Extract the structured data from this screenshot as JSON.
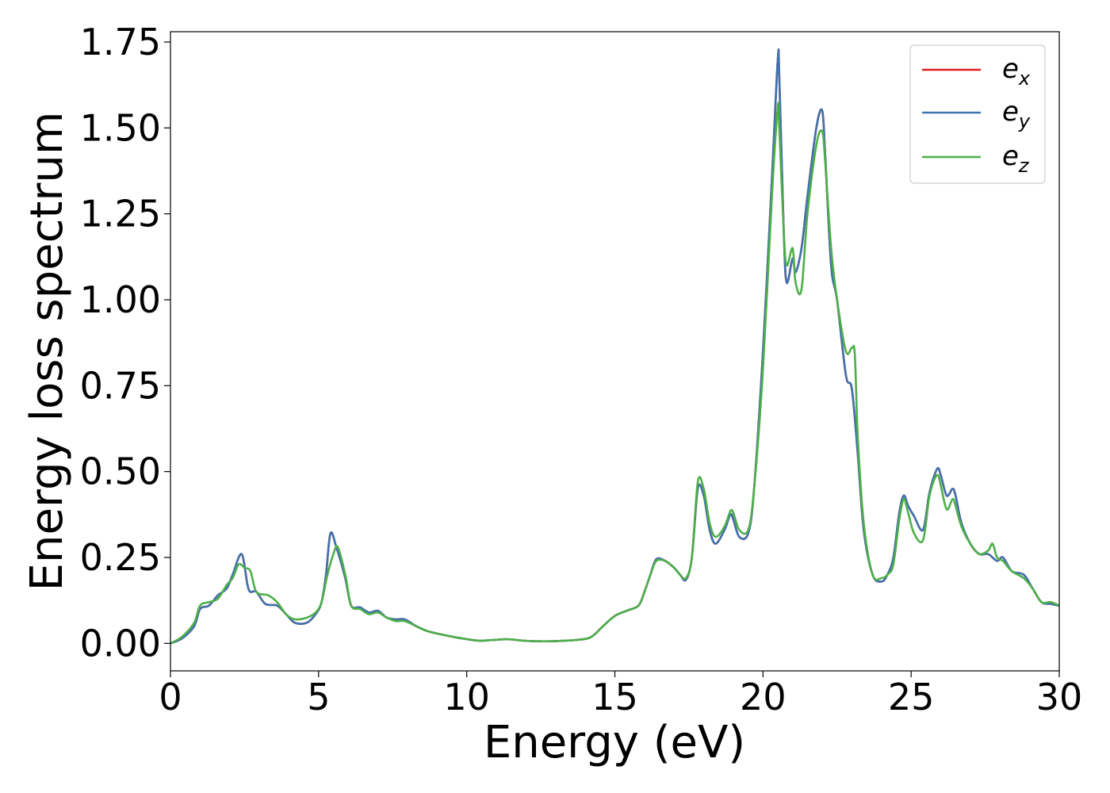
{
  "chart_data": {
    "type": "line",
    "title": "",
    "xlabel": "Energy (eV)",
    "ylabel": "Energy loss spectrum",
    "xlim": [
      0,
      30
    ],
    "ylim": [
      -0.08,
      1.78
    ],
    "xticks": [
      0,
      5,
      10,
      15,
      20,
      25,
      30
    ],
    "xtick_labels": [
      "0",
      "5",
      "10",
      "15",
      "20",
      "25",
      "30"
    ],
    "yticks": [
      0.0,
      0.25,
      0.5,
      0.75,
      1.0,
      1.25,
      1.5,
      1.75
    ],
    "ytick_labels": [
      "0.00",
      "0.25",
      "0.50",
      "0.75",
      "1.00",
      "1.25",
      "1.50",
      "1.75"
    ],
    "grid": false,
    "legend_position": "top-right",
    "series": [
      {
        "name": "e",
        "subscript": "x",
        "color": "#e41a1c",
        "x": [
          0,
          0.4,
          0.8,
          1.0,
          1.3,
          1.6,
          1.9,
          2.1,
          2.4,
          2.6,
          2.7,
          2.9,
          3.2,
          3.6,
          3.9,
          4.2,
          4.6,
          4.9,
          5.1,
          5.25,
          5.4,
          5.6,
          5.9,
          6.1,
          6.4,
          6.7,
          7.0,
          7.3,
          7.6,
          7.9,
          8.3,
          8.7,
          9.2,
          9.8,
          10.4,
          10.9,
          11.4,
          11.9,
          12.5,
          13.1,
          13.7,
          14.1,
          14.3,
          14.6,
          15.0,
          15.4,
          15.8,
          16.0,
          16.2,
          16.4,
          16.7,
          17.0,
          17.2,
          17.4,
          17.6,
          17.8,
          18.0,
          18.2,
          18.4,
          18.7,
          18.9,
          19.0,
          19.2,
          19.5,
          19.7,
          20.0,
          20.3,
          20.5,
          20.55,
          20.7,
          20.8,
          21.0,
          21.1,
          21.3,
          21.5,
          21.8,
          22.0,
          22.1,
          22.3,
          22.5,
          22.8,
          23.0,
          23.2,
          23.4,
          23.7,
          24.0,
          24.2,
          24.4,
          24.6,
          24.75,
          24.9,
          25.1,
          25.4,
          25.6,
          25.75,
          25.9,
          26.0,
          26.2,
          26.4,
          26.5,
          26.7,
          27.0,
          27.3,
          27.6,
          27.9,
          28.1,
          28.4,
          28.8,
          29.1,
          29.4,
          29.7,
          30.0
        ],
        "y": [
          0.0,
          0.015,
          0.05,
          0.1,
          0.11,
          0.14,
          0.16,
          0.2,
          0.26,
          0.17,
          0.15,
          0.15,
          0.115,
          0.11,
          0.085,
          0.06,
          0.06,
          0.085,
          0.12,
          0.2,
          0.32,
          0.28,
          0.19,
          0.11,
          0.105,
          0.09,
          0.095,
          0.075,
          0.07,
          0.07,
          0.05,
          0.035,
          0.025,
          0.015,
          0.008,
          0.01,
          0.012,
          0.008,
          0.006,
          0.007,
          0.01,
          0.015,
          0.025,
          0.05,
          0.08,
          0.095,
          0.11,
          0.15,
          0.2,
          0.245,
          0.24,
          0.22,
          0.2,
          0.185,
          0.25,
          0.45,
          0.43,
          0.33,
          0.29,
          0.33,
          0.375,
          0.36,
          0.31,
          0.32,
          0.45,
          0.85,
          1.35,
          1.7,
          1.65,
          1.2,
          1.05,
          1.12,
          1.08,
          1.15,
          1.3,
          1.5,
          1.55,
          1.42,
          1.1,
          1.0,
          0.78,
          0.74,
          0.55,
          0.33,
          0.2,
          0.18,
          0.2,
          0.25,
          0.38,
          0.43,
          0.4,
          0.37,
          0.33,
          0.43,
          0.48,
          0.51,
          0.49,
          0.43,
          0.45,
          0.43,
          0.35,
          0.29,
          0.26,
          0.26,
          0.24,
          0.25,
          0.21,
          0.2,
          0.16,
          0.12,
          0.115,
          0.11
        ]
      },
      {
        "name": "e",
        "subscript": "y",
        "color": "#3f72af",
        "x": [
          0,
          0.4,
          0.8,
          1.0,
          1.3,
          1.6,
          1.9,
          2.1,
          2.4,
          2.6,
          2.7,
          2.9,
          3.2,
          3.6,
          3.9,
          4.2,
          4.6,
          4.9,
          5.1,
          5.25,
          5.4,
          5.6,
          5.9,
          6.1,
          6.4,
          6.7,
          7.0,
          7.3,
          7.6,
          7.9,
          8.3,
          8.7,
          9.2,
          9.8,
          10.4,
          10.9,
          11.4,
          11.9,
          12.5,
          13.1,
          13.7,
          14.1,
          14.3,
          14.6,
          15.0,
          15.4,
          15.8,
          16.0,
          16.2,
          16.4,
          16.7,
          17.0,
          17.2,
          17.4,
          17.6,
          17.8,
          18.0,
          18.2,
          18.4,
          18.7,
          18.9,
          19.0,
          19.2,
          19.5,
          19.7,
          20.0,
          20.3,
          20.5,
          20.55,
          20.7,
          20.8,
          21.0,
          21.1,
          21.3,
          21.5,
          21.8,
          22.0,
          22.1,
          22.3,
          22.5,
          22.8,
          23.0,
          23.2,
          23.4,
          23.7,
          24.0,
          24.2,
          24.4,
          24.6,
          24.75,
          24.9,
          25.1,
          25.4,
          25.6,
          25.75,
          25.9,
          26.0,
          26.2,
          26.4,
          26.5,
          26.7,
          27.0,
          27.3,
          27.6,
          27.9,
          28.1,
          28.4,
          28.8,
          29.1,
          29.4,
          29.7,
          30.0
        ],
        "y": [
          0.0,
          0.015,
          0.05,
          0.1,
          0.11,
          0.14,
          0.16,
          0.2,
          0.26,
          0.17,
          0.15,
          0.15,
          0.115,
          0.11,
          0.085,
          0.06,
          0.06,
          0.085,
          0.12,
          0.2,
          0.32,
          0.28,
          0.19,
          0.11,
          0.105,
          0.09,
          0.095,
          0.075,
          0.07,
          0.07,
          0.05,
          0.035,
          0.025,
          0.015,
          0.008,
          0.01,
          0.012,
          0.008,
          0.006,
          0.007,
          0.01,
          0.015,
          0.025,
          0.05,
          0.08,
          0.095,
          0.11,
          0.15,
          0.2,
          0.245,
          0.24,
          0.22,
          0.2,
          0.185,
          0.25,
          0.45,
          0.43,
          0.33,
          0.29,
          0.33,
          0.375,
          0.36,
          0.31,
          0.32,
          0.45,
          0.85,
          1.35,
          1.7,
          1.65,
          1.2,
          1.05,
          1.12,
          1.08,
          1.15,
          1.3,
          1.5,
          1.55,
          1.42,
          1.1,
          1.0,
          0.78,
          0.74,
          0.55,
          0.33,
          0.2,
          0.18,
          0.2,
          0.25,
          0.38,
          0.43,
          0.4,
          0.37,
          0.33,
          0.43,
          0.48,
          0.51,
          0.49,
          0.43,
          0.45,
          0.43,
          0.35,
          0.29,
          0.26,
          0.26,
          0.24,
          0.25,
          0.21,
          0.2,
          0.16,
          0.12,
          0.115,
          0.11
        ]
      },
      {
        "name": "e",
        "subscript": "z",
        "color": "#4daf4a",
        "x": [
          0,
          0.4,
          0.8,
          1.0,
          1.3,
          1.6,
          1.9,
          2.1,
          2.3,
          2.5,
          2.7,
          2.9,
          3.3,
          3.6,
          3.9,
          4.2,
          4.6,
          4.9,
          5.1,
          5.3,
          5.5,
          5.65,
          5.9,
          6.1,
          6.4,
          6.7,
          7.0,
          7.3,
          7.6,
          7.9,
          8.3,
          8.7,
          9.2,
          9.8,
          10.4,
          10.9,
          11.4,
          11.9,
          12.5,
          13.1,
          13.7,
          14.1,
          14.3,
          14.6,
          15.0,
          15.4,
          15.8,
          16.0,
          16.2,
          16.4,
          16.7,
          17.0,
          17.2,
          17.4,
          17.6,
          17.8,
          18.0,
          18.2,
          18.4,
          18.7,
          18.9,
          19.0,
          19.2,
          19.5,
          19.7,
          20.0,
          20.3,
          20.5,
          20.55,
          20.7,
          20.8,
          21.0,
          21.1,
          21.3,
          21.5,
          21.8,
          22.0,
          22.1,
          22.3,
          22.5,
          22.8,
          23.0,
          23.1,
          23.2,
          23.4,
          23.7,
          24.0,
          24.2,
          24.4,
          24.6,
          24.75,
          24.9,
          25.1,
          25.4,
          25.6,
          25.75,
          25.9,
          26.0,
          26.2,
          26.4,
          26.5,
          26.7,
          27.0,
          27.3,
          27.6,
          27.75,
          27.9,
          28.1,
          28.4,
          28.8,
          29.1,
          29.4,
          29.7,
          30.0
        ],
        "y": [
          0.0,
          0.02,
          0.06,
          0.11,
          0.12,
          0.13,
          0.17,
          0.19,
          0.23,
          0.22,
          0.21,
          0.15,
          0.14,
          0.12,
          0.085,
          0.07,
          0.075,
          0.09,
          0.12,
          0.2,
          0.26,
          0.28,
          0.2,
          0.11,
          0.1,
          0.085,
          0.09,
          0.075,
          0.065,
          0.065,
          0.05,
          0.035,
          0.025,
          0.015,
          0.008,
          0.01,
          0.012,
          0.008,
          0.006,
          0.007,
          0.01,
          0.015,
          0.025,
          0.05,
          0.08,
          0.095,
          0.11,
          0.15,
          0.2,
          0.24,
          0.24,
          0.22,
          0.2,
          0.19,
          0.25,
          0.47,
          0.45,
          0.35,
          0.31,
          0.34,
          0.385,
          0.38,
          0.33,
          0.33,
          0.45,
          0.8,
          1.3,
          1.56,
          1.5,
          1.2,
          1.1,
          1.15,
          1.05,
          1.03,
          1.25,
          1.45,
          1.49,
          1.4,
          1.15,
          1.0,
          0.85,
          0.86,
          0.84,
          0.6,
          0.35,
          0.2,
          0.19,
          0.2,
          0.23,
          0.36,
          0.42,
          0.38,
          0.32,
          0.3,
          0.42,
          0.47,
          0.49,
          0.46,
          0.39,
          0.42,
          0.4,
          0.34,
          0.29,
          0.26,
          0.27,
          0.29,
          0.25,
          0.24,
          0.21,
          0.19,
          0.16,
          0.12,
          0.12,
          0.11
        ]
      }
    ]
  }
}
